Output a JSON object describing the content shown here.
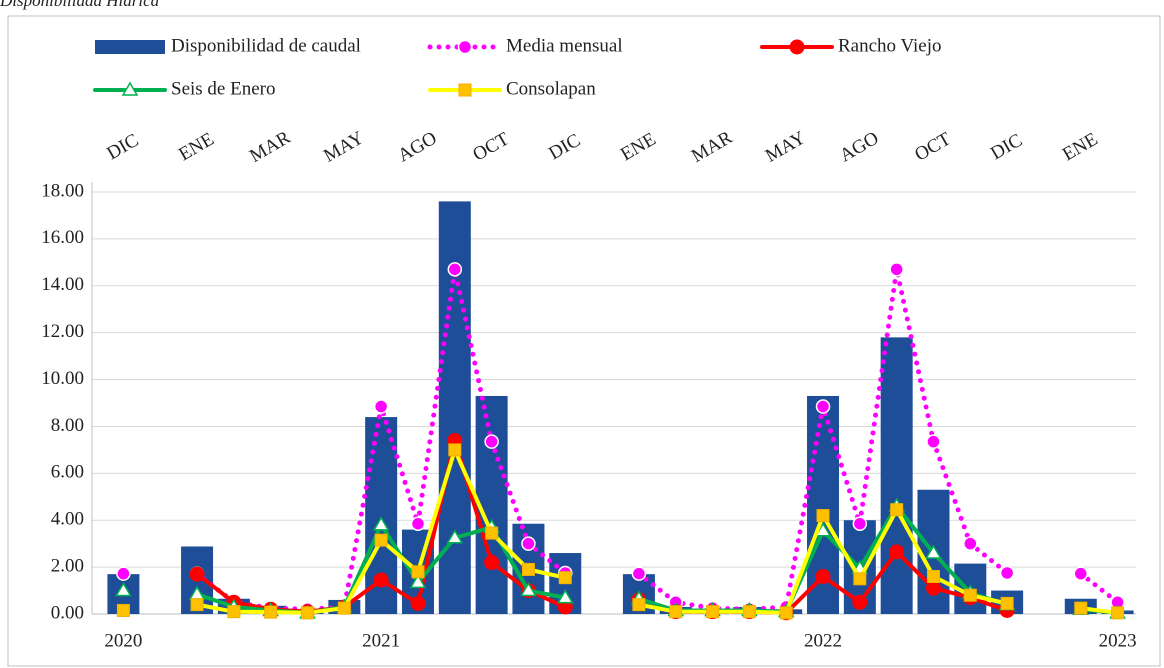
{
  "chart_data": {
    "type": "bar_line",
    "title": "Disponibilidad Hídrica",
    "categories": [
      "DIC",
      null,
      "ENE",
      null,
      "MAR",
      null,
      "MAY",
      null,
      "AGO",
      null,
      "OCT",
      null,
      "DIC",
      null,
      "ENE",
      null,
      "MAR",
      null,
      "MAY",
      null,
      "AGO",
      null,
      "OCT",
      null,
      "DIC",
      null,
      "ENE",
      null
    ],
    "year_labels": [
      "2020",
      null,
      null,
      null,
      null,
      null,
      null,
      "2021",
      null,
      null,
      null,
      null,
      null,
      null,
      null,
      null,
      null,
      null,
      null,
      "2022",
      null,
      null,
      null,
      null,
      null,
      null,
      null,
      "2023"
    ],
    "ylim": [
      0,
      18
    ],
    "yticks": [
      {
        "value": 0,
        "label": "0.00"
      },
      {
        "value": 2,
        "label": "2.00"
      },
      {
        "value": 4,
        "label": "4.00"
      },
      {
        "value": 6,
        "label": "6.00"
      },
      {
        "value": 8,
        "label": "8.00"
      },
      {
        "value": 10,
        "label": "10.00"
      },
      {
        "value": 12,
        "label": "12.00"
      },
      {
        "value": 14,
        "label": "14.00"
      },
      {
        "value": 16,
        "label": "16.00"
      },
      {
        "value": 18,
        "label": "18.00"
      }
    ],
    "grid": true,
    "series": [
      {
        "name": "Disponibilidad de caudal",
        "kind": "bar",
        "color": "#1f4e99",
        "values": [
          1.7,
          null,
          2.88,
          0.65,
          0.35,
          0.15,
          0.6,
          8.4,
          3.6,
          17.6,
          9.3,
          3.85,
          2.6,
          null,
          1.7,
          0.3,
          0.2,
          0.3,
          0.2,
          9.3,
          4.0,
          11.8,
          5.3,
          2.15,
          1.0,
          null,
          0.65,
          0.15
        ]
      },
      {
        "name": "Media mensual",
        "kind": "dotted",
        "color": "#ff00ff",
        "values": [
          1.72,
          null,
          1.72,
          0.5,
          0.25,
          0.2,
          0.3,
          8.85,
          3.85,
          14.7,
          7.35,
          3.0,
          1.75,
          null,
          1.72,
          0.5,
          0.25,
          0.2,
          0.3,
          8.85,
          3.85,
          14.7,
          7.35,
          3.0,
          1.75,
          null,
          1.72,
          0.5
        ]
      },
      {
        "name": "Rancho Viejo",
        "kind": "line",
        "marker": "circle",
        "color": "#ff0000",
        "values": [
          null,
          null,
          1.7,
          0.5,
          0.2,
          0.1,
          0.3,
          1.45,
          0.45,
          7.4,
          2.2,
          1.0,
          0.3,
          null,
          0.6,
          0.1,
          0.1,
          0.1,
          0.05,
          1.6,
          0.5,
          2.65,
          1.1,
          0.7,
          0.15,
          null,
          null,
          null
        ]
      },
      {
        "name": "Seis de Enero",
        "kind": "line",
        "marker": "triangle",
        "color": "#00b050",
        "values": [
          1.0,
          null,
          0.85,
          0.3,
          0.15,
          0.05,
          0.3,
          3.8,
          1.35,
          3.25,
          3.7,
          1.0,
          0.7,
          null,
          0.65,
          0.15,
          0.15,
          0.15,
          0.1,
          3.55,
          1.95,
          4.6,
          2.6,
          0.9,
          0.4,
          null,
          0.2,
          0.05
        ]
      },
      {
        "name": "Consolapan",
        "kind": "line",
        "marker": "square",
        "color": "#ffff00",
        "values": [
          0.15,
          null,
          0.4,
          0.1,
          0.08,
          0.05,
          0.25,
          3.15,
          1.8,
          7.0,
          3.45,
          1.9,
          1.55,
          null,
          0.4,
          0.1,
          0.1,
          0.1,
          0.05,
          4.2,
          1.5,
          4.45,
          1.6,
          0.8,
          0.45,
          null,
          0.25,
          0.05
        ]
      }
    ]
  }
}
